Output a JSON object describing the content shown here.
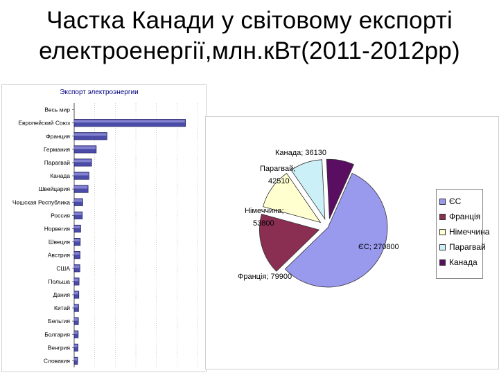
{
  "slide_title_line1": "Частка Канади у світовому експорті",
  "slide_title_line2": "електроенергії,млн.кВт(2011-2012рр)",
  "chart_data": [
    {
      "type": "bar",
      "orientation": "horizontal",
      "title": "Экспорт электроэнергии",
      "categories": [
        "Весь мир",
        "Европейский Союз",
        "Франция",
        "Германия",
        "Парагвай",
        "Канада",
        "Швейцария",
        "Чешская Республика",
        "Россия",
        "Норвегия",
        "Швеция",
        "Австрия",
        "США",
        "Польша",
        "Дания",
        "Китай",
        "Бельгия",
        "Болгария",
        "Венгрия",
        "Словакия"
      ],
      "values": [
        0,
        270800,
        79900,
        53800,
        42510,
        36130,
        34000,
        21000,
        20000,
        16000,
        15000,
        14500,
        14000,
        12000,
        11500,
        11000,
        10500,
        10000,
        9500,
        8500
      ],
      "xlim": [
        0,
        310000
      ],
      "grid": "vertical",
      "bar_color": "#4b4ba8"
    },
    {
      "type": "pie",
      "labels": [
        "ЄС",
        "Франція",
        "Німеччина",
        "Парагвай",
        "Канада"
      ],
      "values": [
        270800,
        79900,
        53800,
        42510,
        36130
      ],
      "data_labels": [
        "ЄС; 270800",
        "Франція; 79900",
        "Німеччина; 53800",
        "Парагвай; 42510",
        "Канада; 36130"
      ],
      "colors": [
        "#9999ee",
        "#8a2e52",
        "#ffffd0",
        "#ccf0f8",
        "#5a0e62"
      ],
      "legend_position": "right",
      "exploded": true
    }
  ]
}
